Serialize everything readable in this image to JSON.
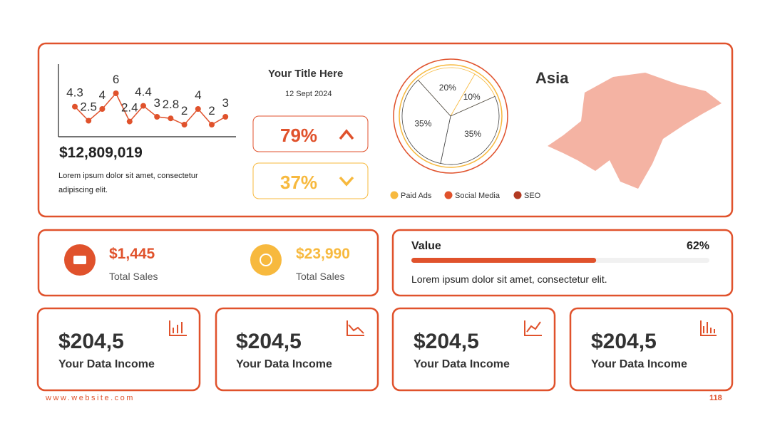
{
  "chart_data": [
    {
      "type": "line",
      "values": [
        4.3,
        2.5,
        4,
        6,
        2.4,
        4.4,
        3,
        2.8,
        2,
        4,
        2,
        3
      ],
      "color": "#e0522c"
    },
    {
      "type": "pie",
      "values": [
        20,
        10,
        35,
        35
      ],
      "value_labels": [
        "20%",
        "10%",
        "35%",
        "35%"
      ],
      "legend": [
        {
          "name": "Paid Ads",
          "color": "#f7b93e"
        },
        {
          "name": "Social Media",
          "color": "#e0522c"
        },
        {
          "name": "SEO",
          "color": "#b23a22"
        }
      ]
    }
  ],
  "summary": {
    "amount": "$12,809,019",
    "text": "Lorem ipsum dolor sit amet, consectetur adipiscing elit."
  },
  "kpi": {
    "title": "Your Title Here",
    "date": "12 Sept 2024",
    "up": "79%",
    "down": "37%"
  },
  "map": {
    "label": "Asia"
  },
  "stats": [
    {
      "value": "$1,445",
      "label": "Total Sales"
    },
    {
      "value": "$23,990",
      "label": "Total Sales"
    }
  ],
  "progress": {
    "label": "Value",
    "value": 62,
    "value_label": "62%",
    "text": "Lorem ipsum dolor sit amet, consectetur elit."
  },
  "cards": [
    {
      "value": "$204,5",
      "label": "Your Data Income"
    },
    {
      "value": "$204,5",
      "label": "Your Data Income"
    },
    {
      "value": "$204,5",
      "label": "Your Data Income"
    },
    {
      "value": "$204,5",
      "label": "Your Data Income"
    }
  ],
  "footer": {
    "website": "www.website.com",
    "page": "118"
  }
}
